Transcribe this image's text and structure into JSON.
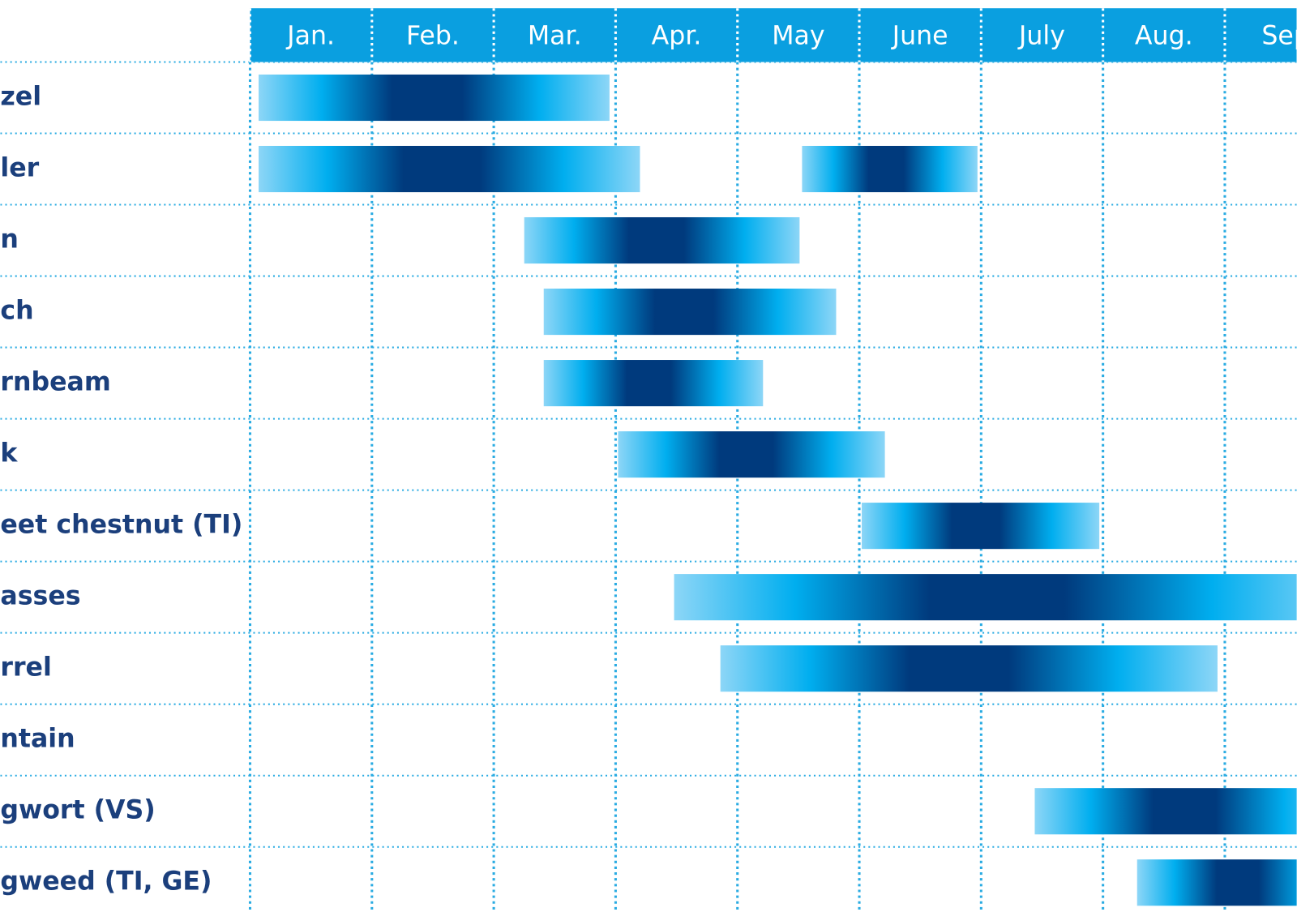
{
  "chart_data": {
    "type": "gantt",
    "categories": [
      "Jan.",
      "Feb.",
      "Mar.",
      "Apr.",
      "May",
      "June",
      "July",
      "Aug.",
      "Sep"
    ],
    "xlim": [
      -2.05,
      8.59
    ],
    "xticks": [
      0,
      1,
      2,
      3,
      4,
      5,
      6,
      7,
      8
    ],
    "grid": true,
    "header_color": "#0a9fe0",
    "grid_color": "#29abe2",
    "colors": [
      "#8dd6f7",
      "#00aeef",
      "#003a7d"
    ],
    "rows": [
      {
        "name": "zel",
        "ranges": [
          [
            0.07,
            2.95
          ]
        ]
      },
      {
        "name": "ler",
        "ranges": [
          [
            0.07,
            3.2
          ],
          [
            4.53,
            5.97
          ]
        ]
      },
      {
        "name": "n",
        "ranges": [
          [
            2.25,
            4.51
          ]
        ]
      },
      {
        "name": "ch",
        "ranges": [
          [
            2.41,
            4.81
          ]
        ]
      },
      {
        "name": "rnbeam",
        "ranges": [
          [
            2.41,
            4.21
          ]
        ]
      },
      {
        "name": "k",
        "ranges": [
          [
            3.02,
            5.21
          ]
        ]
      },
      {
        "name": "eet chestnut (TI)",
        "ranges": [
          [
            5.02,
            6.97
          ]
        ]
      },
      {
        "name": "asses",
        "ranges": [
          [
            3.48,
            9
          ]
        ]
      },
      {
        "name": "rrel",
        "ranges": [
          [
            3.86,
            7.94
          ]
        ]
      },
      {
        "name": "ntain",
        "ranges": []
      },
      {
        "name": "gwort (VS)",
        "ranges": [
          [
            6.44,
            9
          ]
        ]
      },
      {
        "name": "gweed (TI, GE)",
        "ranges": [
          [
            7.28,
            9
          ]
        ]
      }
    ]
  }
}
